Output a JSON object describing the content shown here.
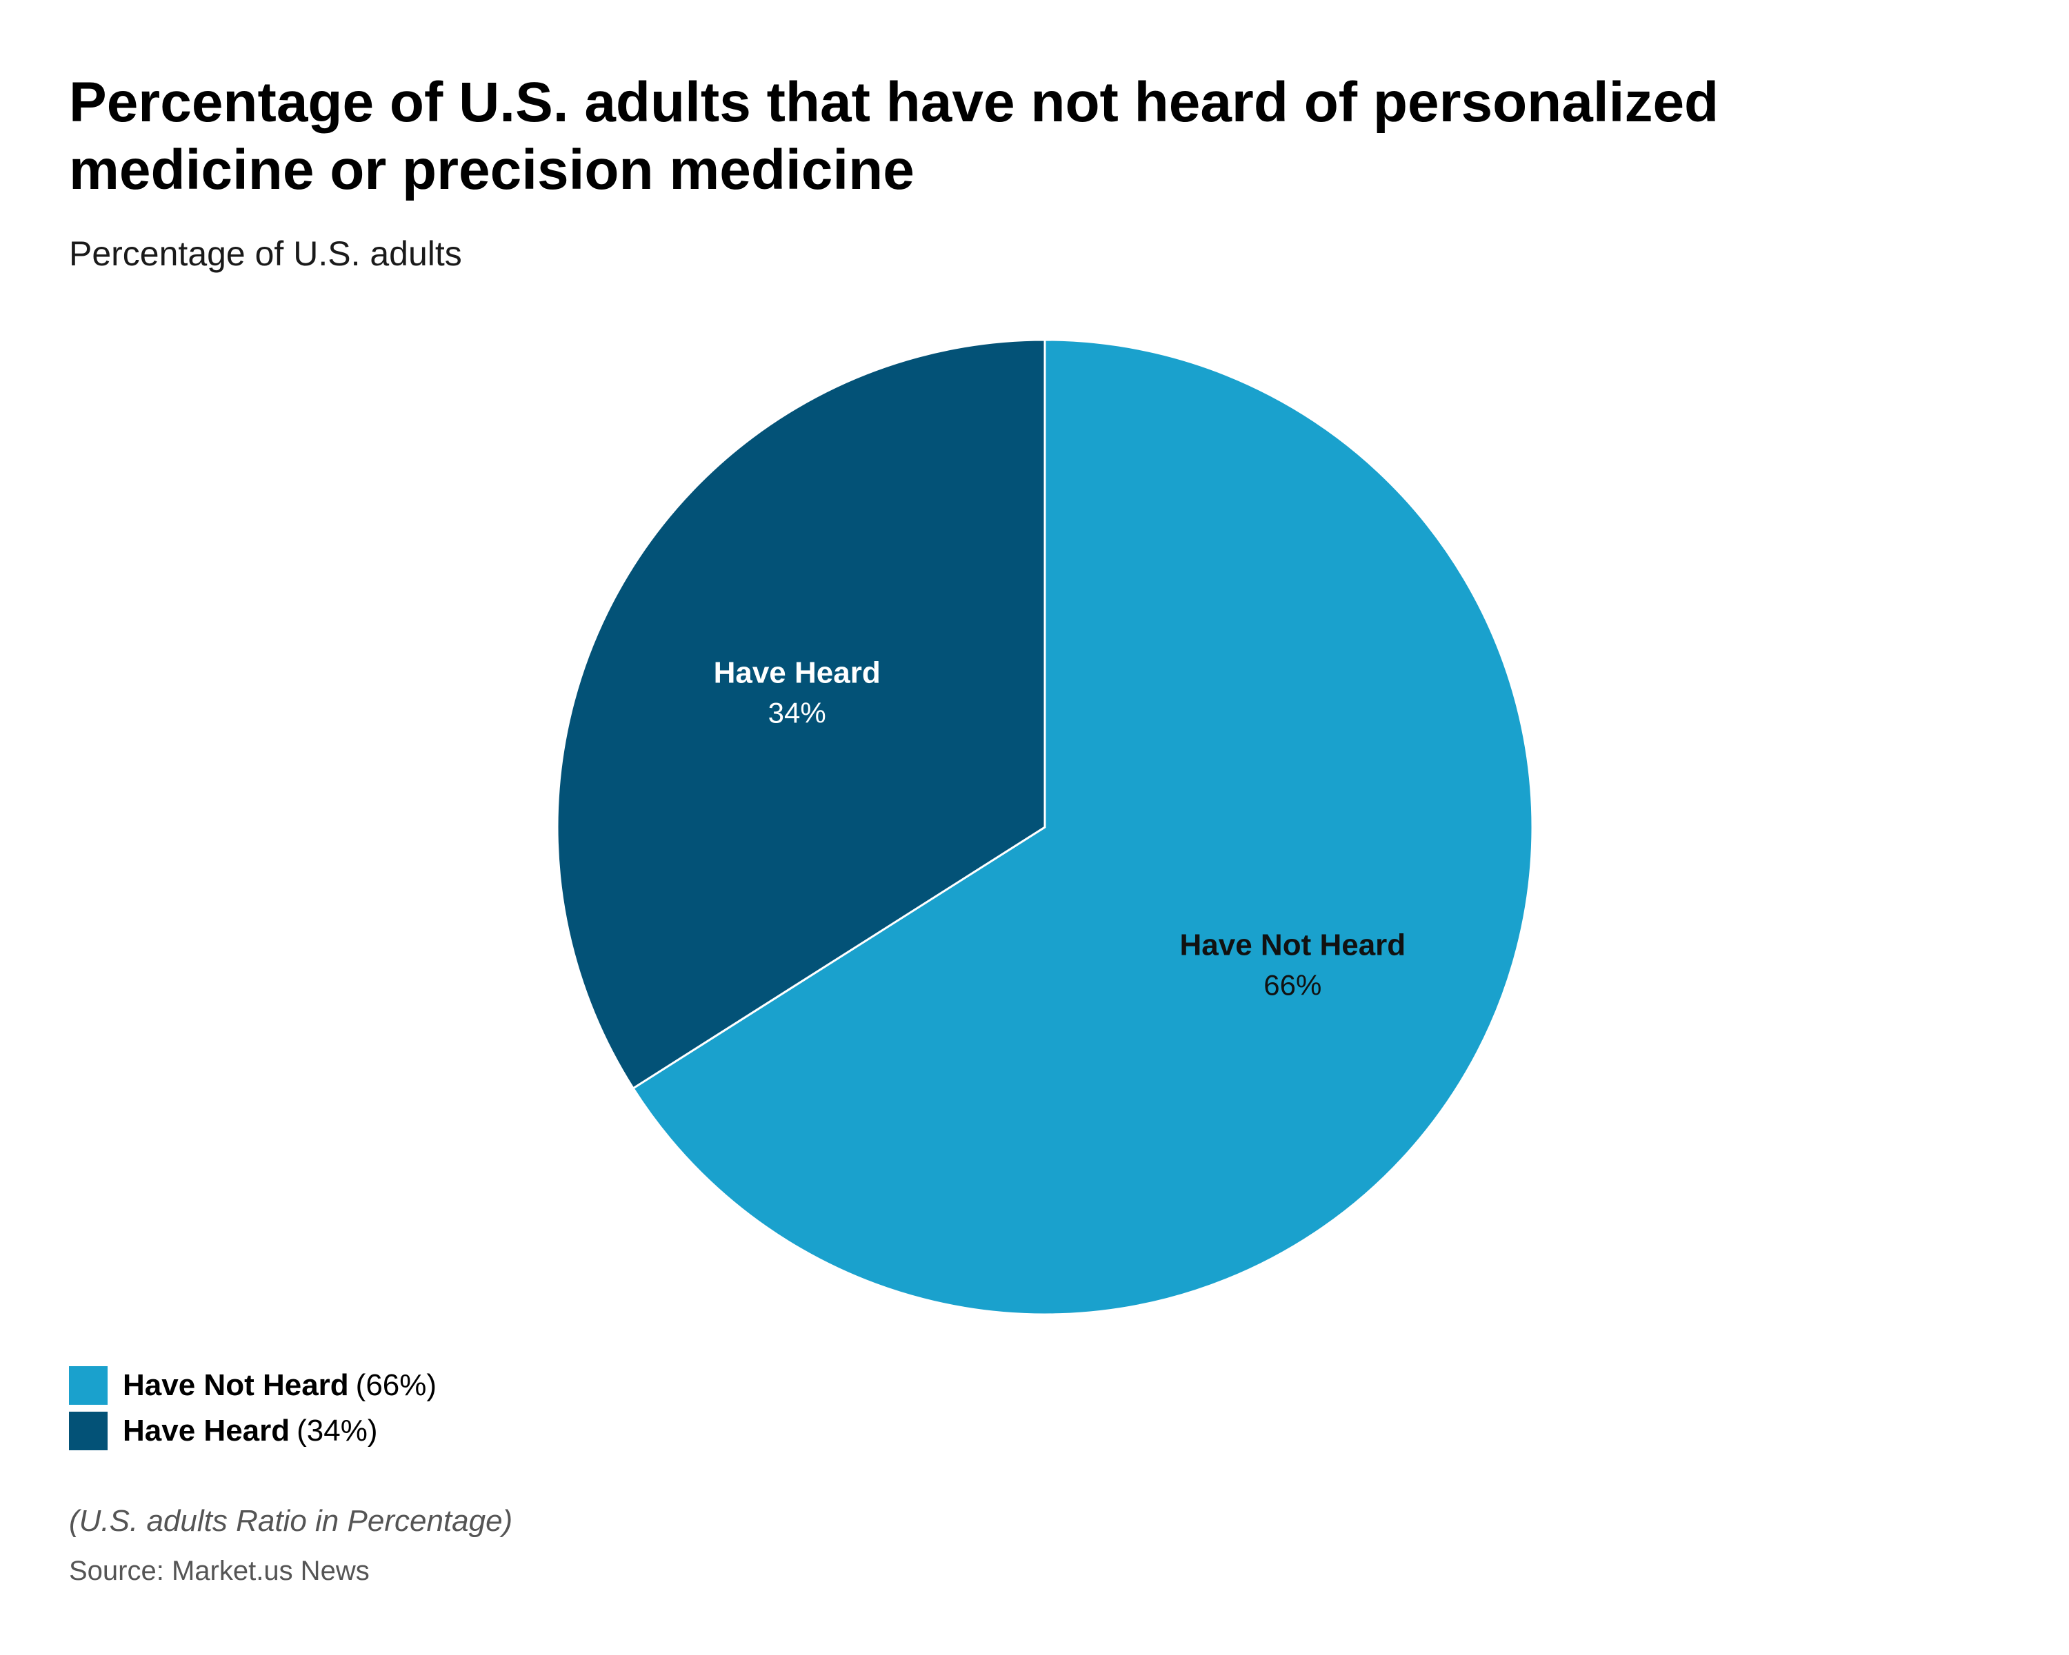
{
  "chart_data": {
    "type": "pie",
    "title": "Percentage of U.S. adults that have not heard of personalized medicine or precision medicine",
    "subtitle": "Percentage of U.S. adults",
    "start_angle_deg": 0,
    "slices": [
      {
        "label": "Have Not Heard",
        "value": 66,
        "value_label": "66%",
        "legend_pct": "(66%)",
        "color": "#1aa1cd",
        "label_color": "#111111",
        "pct_color": "#111111"
      },
      {
        "label": "Have Heard",
        "value": 34,
        "value_label": "34%",
        "value_label_raw": "34%",
        "legend_pct": "(34%)",
        "color": "#035277",
        "label_color": "#ffffff",
        "pct_color": "#ffffff"
      }
    ],
    "legend_position": "bottom-left",
    "footnote": "(U.S. adults Ratio in Percentage)",
    "source": "Source: Market.us News"
  }
}
